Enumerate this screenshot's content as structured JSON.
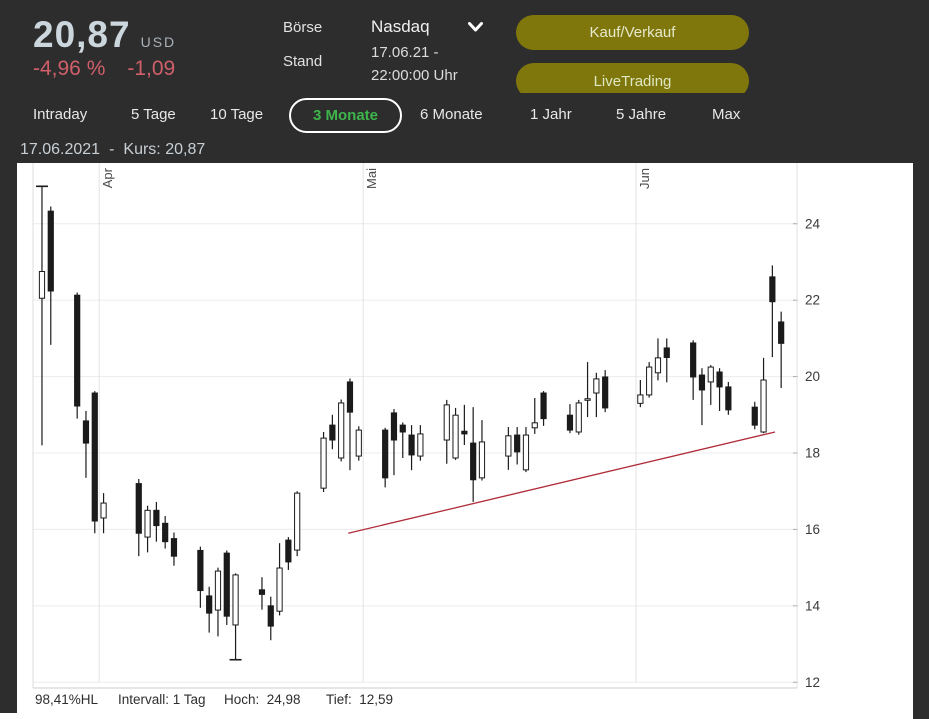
{
  "header": {
    "price": "20,87",
    "currency": "USD",
    "change_percent": "-4,96 %",
    "change_abs": "-1,09",
    "boerse_label": "Börse",
    "boerse_value": "Nasdaq",
    "stand_label": "Stand",
    "stand_value_line1": "17.06.21 -",
    "stand_value_line2": "22:00:00 Uhr",
    "buy_sell_button": "Kauf/Verkauf",
    "live_trading_button": "LiveTrading",
    "chevron_icon": "chevron-down"
  },
  "range_tabs": [
    {
      "label": "Intraday",
      "active": false
    },
    {
      "label": "5 Tage",
      "active": false
    },
    {
      "label": "10 Tage",
      "active": false
    },
    {
      "label": "3 Monate",
      "active": true
    },
    {
      "label": "6 Monate",
      "active": false
    },
    {
      "label": "1 Jahr",
      "active": false
    },
    {
      "label": "5 Jahre",
      "active": false
    },
    {
      "label": "Max",
      "active": false
    }
  ],
  "chart_header": {
    "date": "17.06.2021",
    "separator": "-",
    "kurs": "Kurs: 20,87"
  },
  "chart_footer": {
    "hl": "98,41%HL",
    "interval": "Intervall: 1 Tag",
    "hoch": "Hoch:  24,98",
    "tief": "Tief:  12,59"
  },
  "colors": {
    "header_bg": "#2d2d2e",
    "accent_button": "#80770c",
    "active_tab_green": "#3db54a",
    "negative_red": "#d05f6a",
    "trendline_red": "#b02c38",
    "candle": "#1b1b1b"
  },
  "chart_data": {
    "type": "candlestick",
    "title": "",
    "ylabel": "",
    "y_ticks": [
      12,
      14,
      16,
      18,
      20,
      22,
      24
    ],
    "ylim": [
      11.85,
      25.59
    ],
    "xlim_days": [
      -1.02,
      85.8
    ],
    "grid": true,
    "months": [
      {
        "label": "Apr",
        "day": 6.5
      },
      {
        "label": "Mai",
        "day": 36.5
      },
      {
        "label": "Jun",
        "day": 67.5
      }
    ],
    "stats": {
      "high": 24.98,
      "low": 12.59,
      "last_close": 20.87,
      "interval": "1 Tag"
    },
    "trendline": {
      "x1_day": 34.8,
      "y1": 15.9,
      "x2_day": 83.3,
      "y2": 18.55
    },
    "candles": [
      {
        "d": 0,
        "o": 22.05,
        "h": 24.98,
        "l": 18.2,
        "c": 22.75,
        "hdash": true
      },
      {
        "d": 1,
        "o": 24.33,
        "h": 24.45,
        "l": 20.83,
        "c": 22.24
      },
      {
        "d": 4,
        "o": 22.13,
        "h": 22.2,
        "l": 18.9,
        "c": 19.23
      },
      {
        "d": 5,
        "o": 18.84,
        "h": 19.1,
        "l": 17.35,
        "c": 18.26
      },
      {
        "d": 6,
        "o": 19.57,
        "h": 19.62,
        "l": 15.9,
        "c": 16.22
      },
      {
        "d": 7,
        "o": 16.3,
        "h": 16.95,
        "l": 15.9,
        "c": 16.69
      },
      {
        "d": 11,
        "o": 17.2,
        "h": 17.32,
        "l": 15.3,
        "c": 15.9
      },
      {
        "d": 12,
        "o": 15.8,
        "h": 16.62,
        "l": 15.4,
        "c": 16.5
      },
      {
        "d": 13,
        "o": 16.5,
        "h": 16.72,
        "l": 15.68,
        "c": 16.1
      },
      {
        "d": 14,
        "o": 16.16,
        "h": 16.35,
        "l": 15.5,
        "c": 15.68
      },
      {
        "d": 15,
        "o": 15.76,
        "h": 15.92,
        "l": 15.05,
        "c": 15.3
      },
      {
        "d": 18,
        "o": 15.45,
        "h": 15.55,
        "l": 13.95,
        "c": 14.4
      },
      {
        "d": 19,
        "o": 14.26,
        "h": 14.5,
        "l": 13.3,
        "c": 13.81
      },
      {
        "d": 20,
        "o": 13.89,
        "h": 15.0,
        "l": 13.2,
        "c": 14.91
      },
      {
        "d": 21,
        "o": 15.38,
        "h": 15.45,
        "l": 13.5,
        "c": 13.73
      },
      {
        "d": 22,
        "o": 13.5,
        "h": 14.85,
        "l": 12.59,
        "c": 14.81,
        "ldash": true
      },
      {
        "d": 25,
        "o": 14.42,
        "h": 14.75,
        "l": 13.9,
        "c": 14.3
      },
      {
        "d": 26,
        "o": 14.0,
        "h": 14.24,
        "l": 13.1,
        "c": 13.47
      },
      {
        "d": 27,
        "o": 13.86,
        "h": 15.64,
        "l": 13.75,
        "c": 14.99
      },
      {
        "d": 28,
        "o": 15.72,
        "h": 15.8,
        "l": 14.94,
        "c": 15.15
      },
      {
        "d": 29,
        "o": 15.46,
        "h": 17.0,
        "l": 15.3,
        "c": 16.95
      },
      {
        "d": 32,
        "o": 17.08,
        "h": 18.55,
        "l": 16.98,
        "c": 18.39
      },
      {
        "d": 33,
        "o": 18.73,
        "h": 19.0,
        "l": 18.1,
        "c": 18.34
      },
      {
        "d": 34,
        "o": 17.87,
        "h": 19.4,
        "l": 17.78,
        "c": 19.31
      },
      {
        "d": 35,
        "o": 19.86,
        "h": 19.95,
        "l": 17.55,
        "c": 19.07
      },
      {
        "d": 36,
        "o": 17.92,
        "h": 18.7,
        "l": 17.8,
        "c": 18.6
      },
      {
        "d": 39,
        "o": 18.6,
        "h": 18.66,
        "l": 17.1,
        "c": 17.35
      },
      {
        "d": 40,
        "o": 19.05,
        "h": 19.15,
        "l": 17.42,
        "c": 18.34
      },
      {
        "d": 41,
        "o": 18.73,
        "h": 18.8,
        "l": 17.87,
        "c": 18.55
      },
      {
        "d": 42,
        "o": 18.47,
        "h": 18.73,
        "l": 17.55,
        "c": 17.95
      },
      {
        "d": 43,
        "o": 17.92,
        "h": 18.73,
        "l": 17.8,
        "c": 18.5
      },
      {
        "d": 46,
        "o": 18.34,
        "h": 19.39,
        "l": 17.72,
        "c": 19.26
      },
      {
        "d": 47,
        "o": 17.87,
        "h": 19.18,
        "l": 17.82,
        "c": 18.99
      },
      {
        "d": 48,
        "o": 18.57,
        "h": 19.26,
        "l": 18.21,
        "c": 18.5
      },
      {
        "d": 49,
        "o": 18.26,
        "h": 19.2,
        "l": 16.72,
        "c": 17.3
      },
      {
        "d": 50,
        "o": 17.35,
        "h": 18.86,
        "l": 17.28,
        "c": 18.29
      },
      {
        "d": 53,
        "o": 17.92,
        "h": 18.68,
        "l": 17.56,
        "c": 18.45
      },
      {
        "d": 54,
        "o": 18.47,
        "h": 18.68,
        "l": 17.7,
        "c": 18.03
      },
      {
        "d": 55,
        "o": 17.56,
        "h": 18.68,
        "l": 17.5,
        "c": 18.47
      },
      {
        "d": 56,
        "o": 18.66,
        "h": 19.44,
        "l": 18.5,
        "c": 18.79
      },
      {
        "d": 57,
        "o": 19.57,
        "h": 19.62,
        "l": 18.71,
        "c": 18.9
      },
      {
        "d": 60,
        "o": 18.99,
        "h": 19.28,
        "l": 18.52,
        "c": 18.6
      },
      {
        "d": 61,
        "o": 18.55,
        "h": 19.39,
        "l": 18.48,
        "c": 19.31
      },
      {
        "d": 62,
        "o": 19.38,
        "h": 20.38,
        "l": 18.94,
        "c": 19.42
      },
      {
        "d": 63,
        "o": 19.57,
        "h": 20.1,
        "l": 18.94,
        "c": 19.94
      },
      {
        "d": 64,
        "o": 19.99,
        "h": 20.17,
        "l": 19.07,
        "c": 19.18
      },
      {
        "d": 68,
        "o": 19.3,
        "h": 19.91,
        "l": 19.2,
        "c": 19.52
      },
      {
        "d": 69,
        "o": 19.52,
        "h": 20.38,
        "l": 19.45,
        "c": 20.25
      },
      {
        "d": 70,
        "o": 20.1,
        "h": 21.0,
        "l": 19.9,
        "c": 20.49
      },
      {
        "d": 71,
        "o": 20.75,
        "h": 21.0,
        "l": 19.85,
        "c": 20.5
      },
      {
        "d": 74,
        "o": 20.88,
        "h": 20.95,
        "l": 19.39,
        "c": 19.99
      },
      {
        "d": 75,
        "o": 20.04,
        "h": 20.22,
        "l": 18.73,
        "c": 19.65
      },
      {
        "d": 76,
        "o": 19.86,
        "h": 20.3,
        "l": 19.26,
        "c": 20.25
      },
      {
        "d": 77,
        "o": 20.12,
        "h": 20.22,
        "l": 19.1,
        "c": 19.73
      },
      {
        "d": 78,
        "o": 19.73,
        "h": 19.86,
        "l": 19.0,
        "c": 19.13
      },
      {
        "d": 81,
        "o": 19.2,
        "h": 19.34,
        "l": 18.62,
        "c": 18.73
      },
      {
        "d": 82,
        "o": 18.55,
        "h": 20.49,
        "l": 18.52,
        "c": 19.91
      },
      {
        "d": 83,
        "o": 22.61,
        "h": 22.91,
        "l": 20.51,
        "c": 21.96
      },
      {
        "d": 84,
        "o": 21.43,
        "h": 21.7,
        "l": 19.7,
        "c": 20.87
      }
    ]
  }
}
